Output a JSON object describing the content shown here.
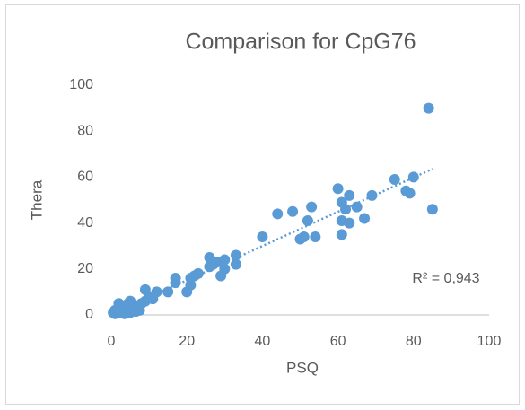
{
  "chart_data": {
    "type": "scatter",
    "title": "Comparison for CpG76",
    "x_label": "PSQ",
    "y_label": "Thera",
    "x": [
      0.5,
      1,
      1,
      1.5,
      2,
      2,
      2.5,
      3,
      3,
      3.5,
      4,
      4.5,
      5,
      5,
      5.5,
      6,
      6.5,
      7,
      7.5,
      8,
      9,
      9,
      10,
      11,
      12,
      15,
      17,
      17,
      20,
      21,
      21,
      22,
      23,
      26,
      26,
      27,
      28,
      29,
      30,
      30,
      33,
      33,
      40,
      44,
      48,
      50,
      51,
      52,
      53,
      54,
      60,
      61,
      61,
      61,
      62,
      63,
      63,
      65,
      67,
      69,
      75,
      78,
      79,
      80,
      84,
      85
    ],
    "values": [
      1,
      2,
      0.5,
      1,
      3,
      5,
      1,
      2,
      4,
      0.5,
      3,
      5,
      1,
      6,
      2,
      3,
      1.5,
      4,
      2,
      5,
      11,
      6,
      8,
      7,
      10,
      10,
      16,
      14,
      10,
      13,
      16,
      17,
      18,
      25,
      21,
      22,
      23,
      17,
      24,
      20,
      26,
      22,
      34,
      44,
      45,
      33,
      34,
      41,
      47,
      34,
      55,
      35,
      41,
      49,
      46,
      52,
      40,
      47,
      42,
      52,
      59,
      54,
      53,
      60,
      90,
      46
    ],
    "color": "#5b9bd5",
    "xlim": [
      0,
      100
    ],
    "ylim": [
      0,
      100
    ],
    "xticks": [
      0,
      20,
      40,
      60,
      80,
      100
    ],
    "yticks": [
      0,
      20,
      40,
      60,
      80,
      100
    ],
    "grid": false,
    "trendline": true,
    "annotation": "R² = 0,943"
  }
}
